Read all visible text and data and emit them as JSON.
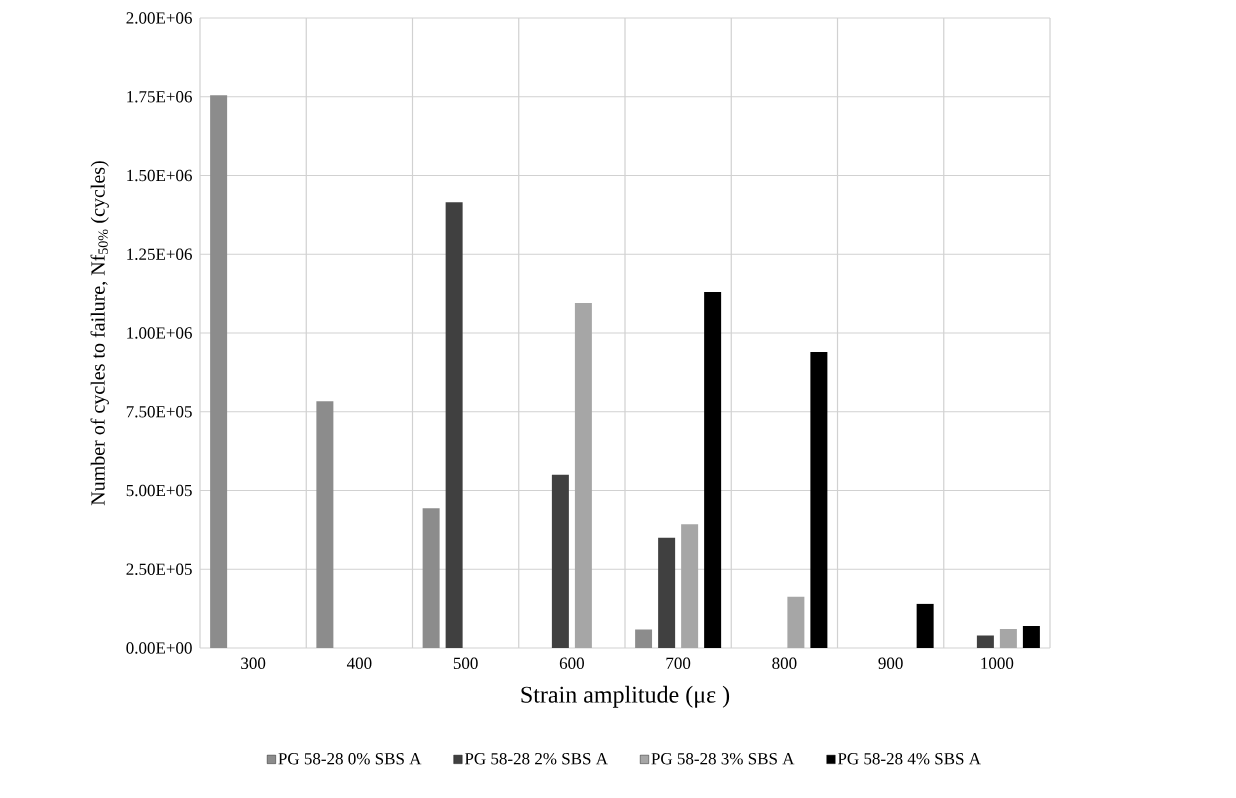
{
  "chart_data": {
    "type": "bar",
    "xlabel": "Strain amplitude (με )",
    "ylabel": "Number of cycles to failure, Nf$_{50%}$ (cycles)",
    "categories": [
      "300",
      "400",
      "500",
      "600",
      "700",
      "800",
      "900",
      "1000"
    ],
    "series": [
      {
        "name": "PG 58-28 0% SBS A",
        "color": "#8c8c8c",
        "values": [
          1755000,
          783000,
          444000,
          null,
          59000,
          null,
          null,
          null
        ]
      },
      {
        "name": "PG 58-28 2% SBS A",
        "color": "#404040",
        "values": [
          null,
          null,
          1415000,
          550000,
          350000,
          null,
          null,
          40000
        ]
      },
      {
        "name": "PG 58-28 3% SBS A",
        "color": "#a6a6a6",
        "values": [
          null,
          null,
          null,
          1095000,
          393000,
          163000,
          null,
          60000
        ]
      },
      {
        "name": "PG 58-28 4% SBS A",
        "color": "#000000",
        "values": [
          null,
          null,
          null,
          null,
          1130000,
          940000,
          140000,
          70000
        ]
      }
    ],
    "ylim": [
      0,
      2000000
    ],
    "yticks": [
      {
        "value": 0,
        "label": "0.00E+00"
      },
      {
        "value": 250000,
        "label": "2.50E+05"
      },
      {
        "value": 500000,
        "label": "5.00E+05"
      },
      {
        "value": 750000,
        "label": "7.50E+05"
      },
      {
        "value": 1000000,
        "label": "1.00E+06"
      },
      {
        "value": 1250000,
        "label": "1.25E+06"
      },
      {
        "value": 1500000,
        "label": "1.50E+06"
      },
      {
        "value": 1750000,
        "label": "1.75E+06"
      },
      {
        "value": 2000000,
        "label": "2.00E+06"
      }
    ],
    "grid": true,
    "legend": "bottom"
  }
}
